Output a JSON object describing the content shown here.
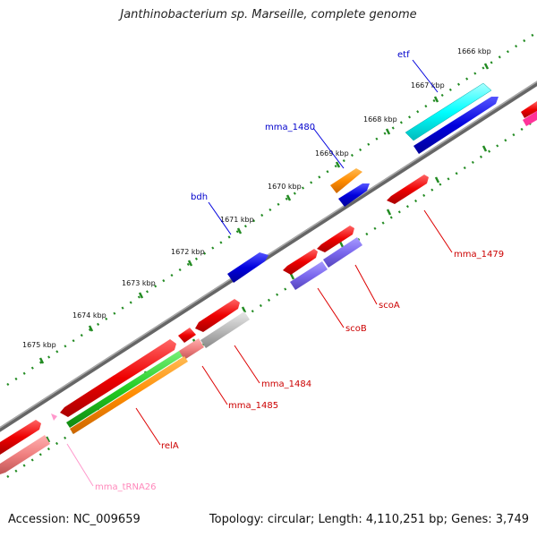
{
  "title": "Janthinobacterium sp. Marseille, complete genome",
  "footer": {
    "accession": "Accession: NC_009659",
    "topology": "Topology: circular; Length: 4,110,251 bp; Genes: 3,749"
  },
  "colors": {
    "backbone": "#888888",
    "tick": "#228b22",
    "gene_red": "#ee0000",
    "gene_blue": "#0000dd",
    "gene_cyan": "#00ffff",
    "gene_orange": "#ff8c00",
    "gene_purple": "#7b68ee",
    "gene_green": "#22cc22",
    "gene_gray": "#bbbbbb",
    "gene_pink": "#f08080",
    "gene_trna": "#ff99cc"
  },
  "ticks": [
    {
      "label": "1666 kbp"
    },
    {
      "label": "1667 kbp"
    },
    {
      "label": "1668 kbp"
    },
    {
      "label": "1669 kbp"
    },
    {
      "label": "1670 kbp"
    },
    {
      "label": "1671 kbp"
    },
    {
      "label": "1672 kbp"
    },
    {
      "label": "1673 kbp"
    },
    {
      "label": "1674 kbp"
    },
    {
      "label": "1675 kbp"
    }
  ],
  "genes": [
    {
      "name": "etf",
      "color": "blue"
    },
    {
      "name": "mma_1480",
      "color": "blue"
    },
    {
      "name": "bdh",
      "color": "blue"
    },
    {
      "name": "mma_1479",
      "color": "red"
    },
    {
      "name": "scoA",
      "color": "red"
    },
    {
      "name": "scoB",
      "color": "red"
    },
    {
      "name": "mma_1484",
      "color": "red"
    },
    {
      "name": "mma_1485",
      "color": "red"
    },
    {
      "name": "relA",
      "color": "red"
    },
    {
      "name": "mma_tRNA26",
      "color": "pink"
    }
  ]
}
